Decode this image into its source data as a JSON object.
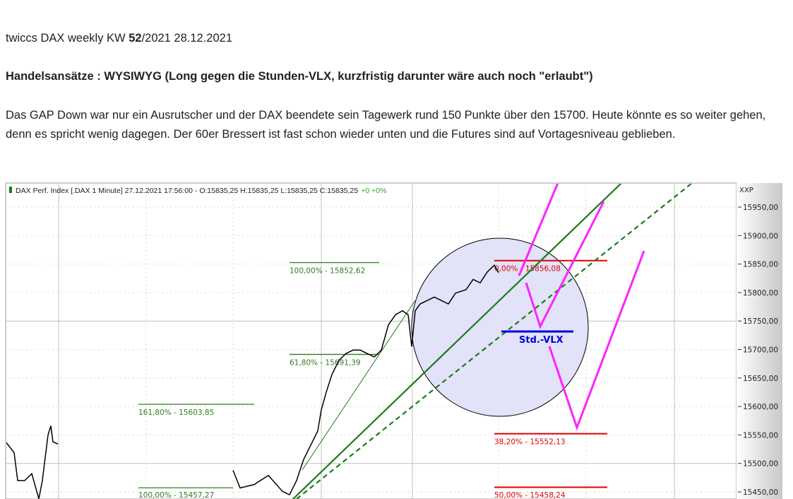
{
  "post": {
    "title_prefix": "twiccs DAX weekly KW ",
    "title_week": "52",
    "title_suffix": "/2021  28.12.2021",
    "heading": "Handelsansätze :  WYSIWYG (Long gegen die Stunden-VLX, kurzfristig darunter wäre auch noch \"erlaubt\")",
    "paragraph": "Das GAP Down war nur ein Ausrutscher und der DAX beendete sein Tagewerk rund 150 Punkte über den 15700. Heute könnte es so weiter gehen, denn es spricht wenig dagegen. Der 60er Bressert ist fast schon wieder unten und die Futures sind auf Vortagesniveau geblieben."
  },
  "chart_data": {
    "type": "line",
    "header": "DAX Perf. Index [.DAX  1 Minute] 27.12.2021 17:56:00 - O:15835,25 H:15835,25 L:15835,25 C:15835,25",
    "header_change": "+0 +0%",
    "axis_title": "XXP",
    "ylim": [
      15420,
      15992
    ],
    "yticks": [
      "15950,00",
      "15900,00",
      "15850,00",
      "15800,00",
      "15750,00",
      "15700,00",
      "15650,00",
      "15600,00",
      "15550,00",
      "15500,00",
      "15450,00"
    ],
    "ytick_values": [
      15950,
      15900,
      15850,
      15800,
      15750,
      15700,
      15650,
      15600,
      15550,
      15500,
      15450
    ],
    "grid": true,
    "price": [
      [
        0,
        15538
      ],
      [
        12,
        15519
      ],
      [
        17,
        15470
      ],
      [
        27,
        15470
      ],
      [
        37,
        15482
      ],
      [
        47,
        15438
      ],
      [
        52,
        15470
      ],
      [
        60,
        15550
      ],
      [
        64,
        15566
      ],
      [
        67,
        15538
      ],
      [
        74,
        15534
      ],
      [
        75,
        15380
      ],
      [
        321,
        15380
      ],
      [
        322,
        15488
      ],
      [
        332,
        15457
      ],
      [
        352,
        15463
      ],
      [
        372,
        15479
      ],
      [
        392,
        15451
      ],
      [
        402,
        15445
      ],
      [
        412,
        15470
      ],
      [
        422,
        15507
      ],
      [
        432,
        15532
      ],
      [
        442,
        15557
      ],
      [
        447,
        15594
      ],
      [
        454,
        15625
      ],
      [
        462,
        15656
      ],
      [
        472,
        15681
      ],
      [
        482,
        15693
      ],
      [
        492,
        15699
      ],
      [
        502,
        15699
      ],
      [
        512,
        15693
      ],
      [
        522,
        15687
      ],
      [
        532,
        15699
      ],
      [
        542,
        15743
      ],
      [
        552,
        15761
      ],
      [
        562,
        15768
      ],
      [
        570,
        15761
      ],
      [
        575,
        15705
      ],
      [
        580,
        15768
      ],
      [
        587,
        15780
      ],
      [
        597,
        15786
      ],
      [
        607,
        15792
      ],
      [
        617,
        15786
      ],
      [
        627,
        15780
      ],
      [
        637,
        15799
      ],
      [
        652,
        15805
      ],
      [
        662,
        15823
      ],
      [
        672,
        15817
      ],
      [
        682,
        15836
      ],
      [
        692,
        15848
      ],
      [
        698,
        15835
      ]
    ],
    "fib_levels": [
      {
        "label": "100,00% - 15852,62",
        "value": 15852.62,
        "color": "#2e7d1e"
      },
      {
        "label": "61,80% - 15691,39",
        "value": 15691.39,
        "color": "#2e7d1e"
      },
      {
        "label": "161,80% - 15603,85",
        "value": 15603.85,
        "color": "#2e7d1e"
      },
      {
        "label": "100,00% - 15457,27",
        "value": 15457.27,
        "color": "#2e7d1e"
      },
      {
        "label": "0,00% - 15856,08",
        "value": 15856.08,
        "color": "#e00000"
      },
      {
        "label": "38,20% - 15552,13",
        "value": 15552.13,
        "color": "#e00000"
      },
      {
        "label": "50,00% - 15458,24",
        "value": 15458.24,
        "color": "#e00000"
      }
    ],
    "annotation": "Std.-VLX",
    "colors": {
      "price": "#000000",
      "trend": "#1a7a1a",
      "zigzag": "#ff22ff",
      "vlx": "#0000dd",
      "circle_fill": "#e2e2f8",
      "up": "#22aa22"
    }
  }
}
